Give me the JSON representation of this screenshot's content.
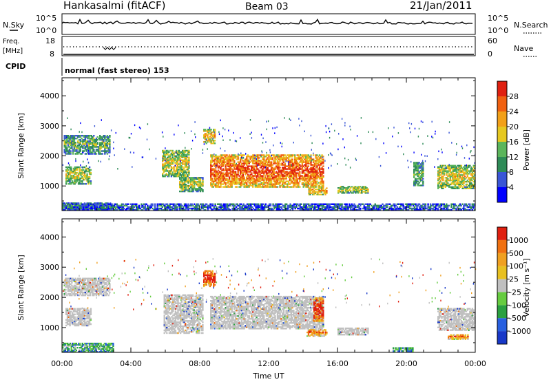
{
  "header": {
    "station": "Hankasalmi (fitACF)",
    "beam": "Beam 03",
    "date": "21/Jan/2011"
  },
  "top_panels": {
    "nsky_label": "N.Sky",
    "nsky_ticks": [
      "10^5",
      "10^0"
    ],
    "nsearch_label": "N.Search",
    "nsearch_ticks": [
      "10^5",
      "10^0"
    ],
    "freq_label": "Freq.",
    "freq_unit": "[MHz]",
    "freq_ticks": [
      "18",
      "8"
    ],
    "nave_label": "Nave",
    "nave_ticks": [
      "60",
      "0"
    ],
    "cpid_label": "CPID",
    "cpid_text": "normal (fast stereo) 153"
  },
  "chart_data": [
    {
      "type": "heatmap",
      "name": "power-panel",
      "xlabel": "",
      "ylabel": "Slant Range [km]",
      "y_ticks": [
        1000,
        2000,
        3000,
        4000
      ],
      "ylim": [
        180,
        4600
      ],
      "xlim": [
        0,
        24
      ],
      "colorbar_label": "Power [dB]",
      "colorbar_ticks": [
        "28",
        "24",
        "20",
        "16",
        "12",
        "8",
        "4"
      ],
      "colors": [
        "#0000ff",
        "#3a56d6",
        "#2e8b57",
        "#5bb55b",
        "#e6c820",
        "#f2a018",
        "#f06010",
        "#e02010"
      ],
      "echo_regions": [
        {
          "t0": 0.0,
          "t1": 2.9,
          "r0": 200,
          "r1": 450,
          "level": 0.25
        },
        {
          "t0": 0.2,
          "t1": 1.7,
          "r0": 1050,
          "r1": 1650,
          "level": 0.45
        },
        {
          "t0": 0.1,
          "t1": 2.8,
          "r0": 2050,
          "r1": 2700,
          "level": 0.35
        },
        {
          "t0": 5.8,
          "t1": 7.4,
          "r0": 1300,
          "r1": 2200,
          "level": 0.5
        },
        {
          "t0": 6.8,
          "t1": 8.2,
          "r0": 800,
          "r1": 1300,
          "level": 0.45
        },
        {
          "t0": 8.6,
          "t1": 15.2,
          "r0": 950,
          "r1": 2050,
          "level": 0.75
        },
        {
          "t0": 8.2,
          "t1": 8.9,
          "r0": 2400,
          "r1": 2900,
          "level": 0.6
        },
        {
          "t0": 14.3,
          "t1": 15.4,
          "r0": 700,
          "r1": 950,
          "level": 0.6
        },
        {
          "t0": 16.0,
          "t1": 17.8,
          "r0": 750,
          "r1": 1000,
          "level": 0.45
        },
        {
          "t0": 20.4,
          "t1": 21.0,
          "r0": 1000,
          "r1": 1800,
          "level": 0.35
        },
        {
          "t0": 21.8,
          "t1": 24.0,
          "r0": 900,
          "r1": 1700,
          "level": 0.5
        },
        {
          "t0": 0.0,
          "t1": 24.0,
          "r0": 180,
          "r1": 420,
          "level": 0.2
        }
      ]
    },
    {
      "type": "heatmap",
      "name": "velocity-panel",
      "xlabel": "Time UT",
      "ylabel": "Slant Range [km]",
      "x_ticks": [
        "00:00",
        "04:00",
        "08:00",
        "12:00",
        "16:00",
        "20:00",
        "00:00"
      ],
      "y_ticks": [
        1000,
        2000,
        3000,
        4000
      ],
      "ylim": [
        180,
        4600
      ],
      "xlim": [
        0,
        24
      ],
      "colorbar_label": "Velocity [m s⁻¹]",
      "colorbar_ticks": [
        "1000",
        "500",
        "100",
        "25",
        "-25",
        "-100",
        "-500",
        "-1000"
      ],
      "colors": [
        "#1838c8",
        "#2860e0",
        "#2aa040",
        "#66cc40",
        "#c0c0c0",
        "#e8c020",
        "#f0a020",
        "#f07010",
        "#e02010"
      ],
      "echo_regions": [
        {
          "t0": 0.1,
          "t1": 2.8,
          "r0": 2050,
          "r1": 2650,
          "level": 0.5
        },
        {
          "t0": 0.2,
          "t1": 1.7,
          "r0": 1050,
          "r1": 1650,
          "level": 0.5
        },
        {
          "t0": 0.0,
          "t1": 3.0,
          "r0": 180,
          "r1": 500,
          "level": 0.3
        },
        {
          "t0": 5.9,
          "t1": 8.2,
          "r0": 800,
          "r1": 2100,
          "level": 0.5
        },
        {
          "t0": 8.6,
          "t1": 15.2,
          "r0": 950,
          "r1": 2050,
          "level": 0.5
        },
        {
          "t0": 8.2,
          "t1": 8.9,
          "r0": 2350,
          "r1": 2900,
          "level": 0.85
        },
        {
          "t0": 14.2,
          "t1": 15.4,
          "r0": 700,
          "r1": 950,
          "level": 0.7
        },
        {
          "t0": 14.6,
          "t1": 15.2,
          "r0": 1200,
          "r1": 2000,
          "level": 0.9
        },
        {
          "t0": 16.0,
          "t1": 17.8,
          "r0": 750,
          "r1": 1000,
          "level": 0.5
        },
        {
          "t0": 19.2,
          "t1": 20.4,
          "r0": 200,
          "r1": 350,
          "level": 0.3
        },
        {
          "t0": 21.8,
          "t1": 24.0,
          "r0": 900,
          "r1": 1650,
          "level": 0.5
        },
        {
          "t0": 22.4,
          "t1": 23.6,
          "r0": 600,
          "r1": 780,
          "level": 0.7
        }
      ]
    }
  ]
}
